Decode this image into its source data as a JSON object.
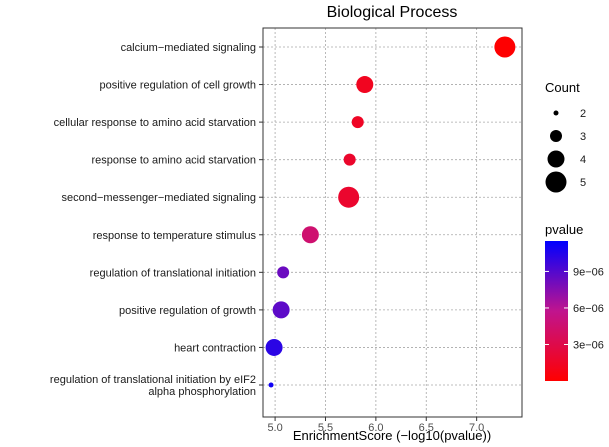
{
  "chart_data": {
    "type": "scatter",
    "title": "Biological Process",
    "xlabel": "EnrichmentScore (−log10(pvalue))",
    "ylabel": "",
    "xlim": [
      4.88,
      7.45
    ],
    "xticks": [
      5.0,
      5.5,
      6.0,
      6.5,
      7.0
    ],
    "xtick_labels": [
      "5.0",
      "5.5",
      "6.0",
      "6.5",
      "7.0"
    ],
    "grid": true,
    "categories": [
      "calcium−mediated signaling",
      "positive regulation of cell growth",
      "cellular response to amino acid starvation",
      "response to amino acid starvation",
      "second−messenger−mediated signaling",
      "response to temperature stimulus",
      "regulation of translational initiation",
      "positive regulation of growth",
      "heart contraction",
      "regulation of translational initiation by eIF2 alpha phosphorylation"
    ],
    "points": [
      {
        "term": "calcium−mediated signaling",
        "score": 7.28,
        "count": 5,
        "pvalue": 5.2e-08
      },
      {
        "term": "positive regulation of cell growth",
        "score": 5.89,
        "count": 4,
        "pvalue": 1.3e-06
      },
      {
        "term": "cellular response to amino acid starvation",
        "score": 5.82,
        "count": 3,
        "pvalue": 1.5e-06
      },
      {
        "term": "response to amino acid starvation",
        "score": 5.74,
        "count": 3,
        "pvalue": 1.8e-06
      },
      {
        "term": "second−messenger−mediated signaling",
        "score": 5.73,
        "count": 5,
        "pvalue": 1.85e-06
      },
      {
        "term": "response to temperature stimulus",
        "score": 5.35,
        "count": 4,
        "pvalue": 4.5e-06
      },
      {
        "term": "regulation of translational initiation",
        "score": 5.08,
        "count": 3,
        "pvalue": 8.3e-06
      },
      {
        "term": "positive regulation of growth",
        "score": 5.06,
        "count": 4,
        "pvalue": 8.7e-06
      },
      {
        "term": "heart contraction",
        "score": 4.99,
        "count": 4,
        "pvalue": 1.02e-05
      },
      {
        "term": "regulation of translational initiation by eIF2 alpha phosphorylation",
        "score": 4.96,
        "count": 2,
        "pvalue": 1.1e-05
      }
    ],
    "size_legend": {
      "title": "Count",
      "values": [
        2,
        3,
        4,
        5
      ],
      "labels": [
        "2",
        "3",
        "4",
        "5"
      ]
    },
    "color_legend": {
      "title": "pvalue",
      "range": [
        0,
        1.15e-05
      ],
      "ticks": [
        3e-06,
        6e-06,
        9e-06
      ],
      "tick_labels": [
        "3e−06",
        "6e−06",
        "9e−06"
      ],
      "low_color": "#ff0000",
      "high_color": "#0000ff"
    },
    "colors": {
      "grid": "#a8a8a8",
      "panel_border": "#333333",
      "background": "#ffffff"
    }
  }
}
